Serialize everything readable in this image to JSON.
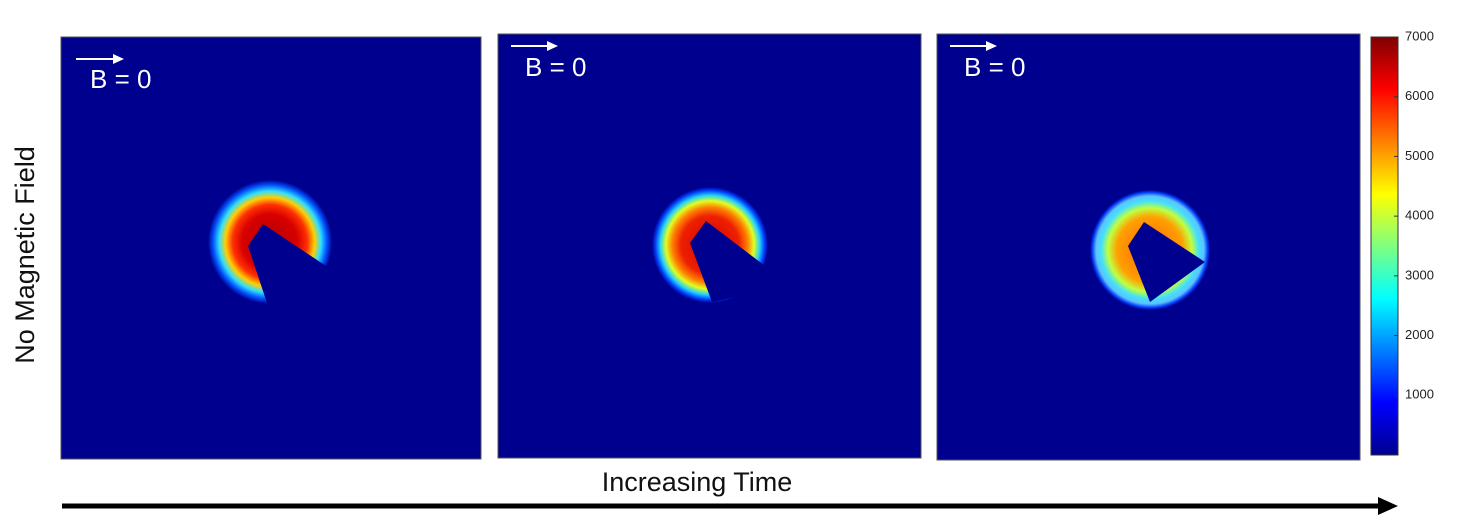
{
  "ylabel": "No Magnetic Field",
  "xlabel": "Increasing Time",
  "panels": [
    {
      "label": "B = 0"
    },
    {
      "label": "B = 0"
    },
    {
      "label": "B = 0"
    }
  ],
  "colorbar": {
    "lim": [
      0,
      7000
    ],
    "ticks": [
      1000,
      2000,
      3000,
      4000,
      5000,
      6000,
      7000
    ]
  }
}
